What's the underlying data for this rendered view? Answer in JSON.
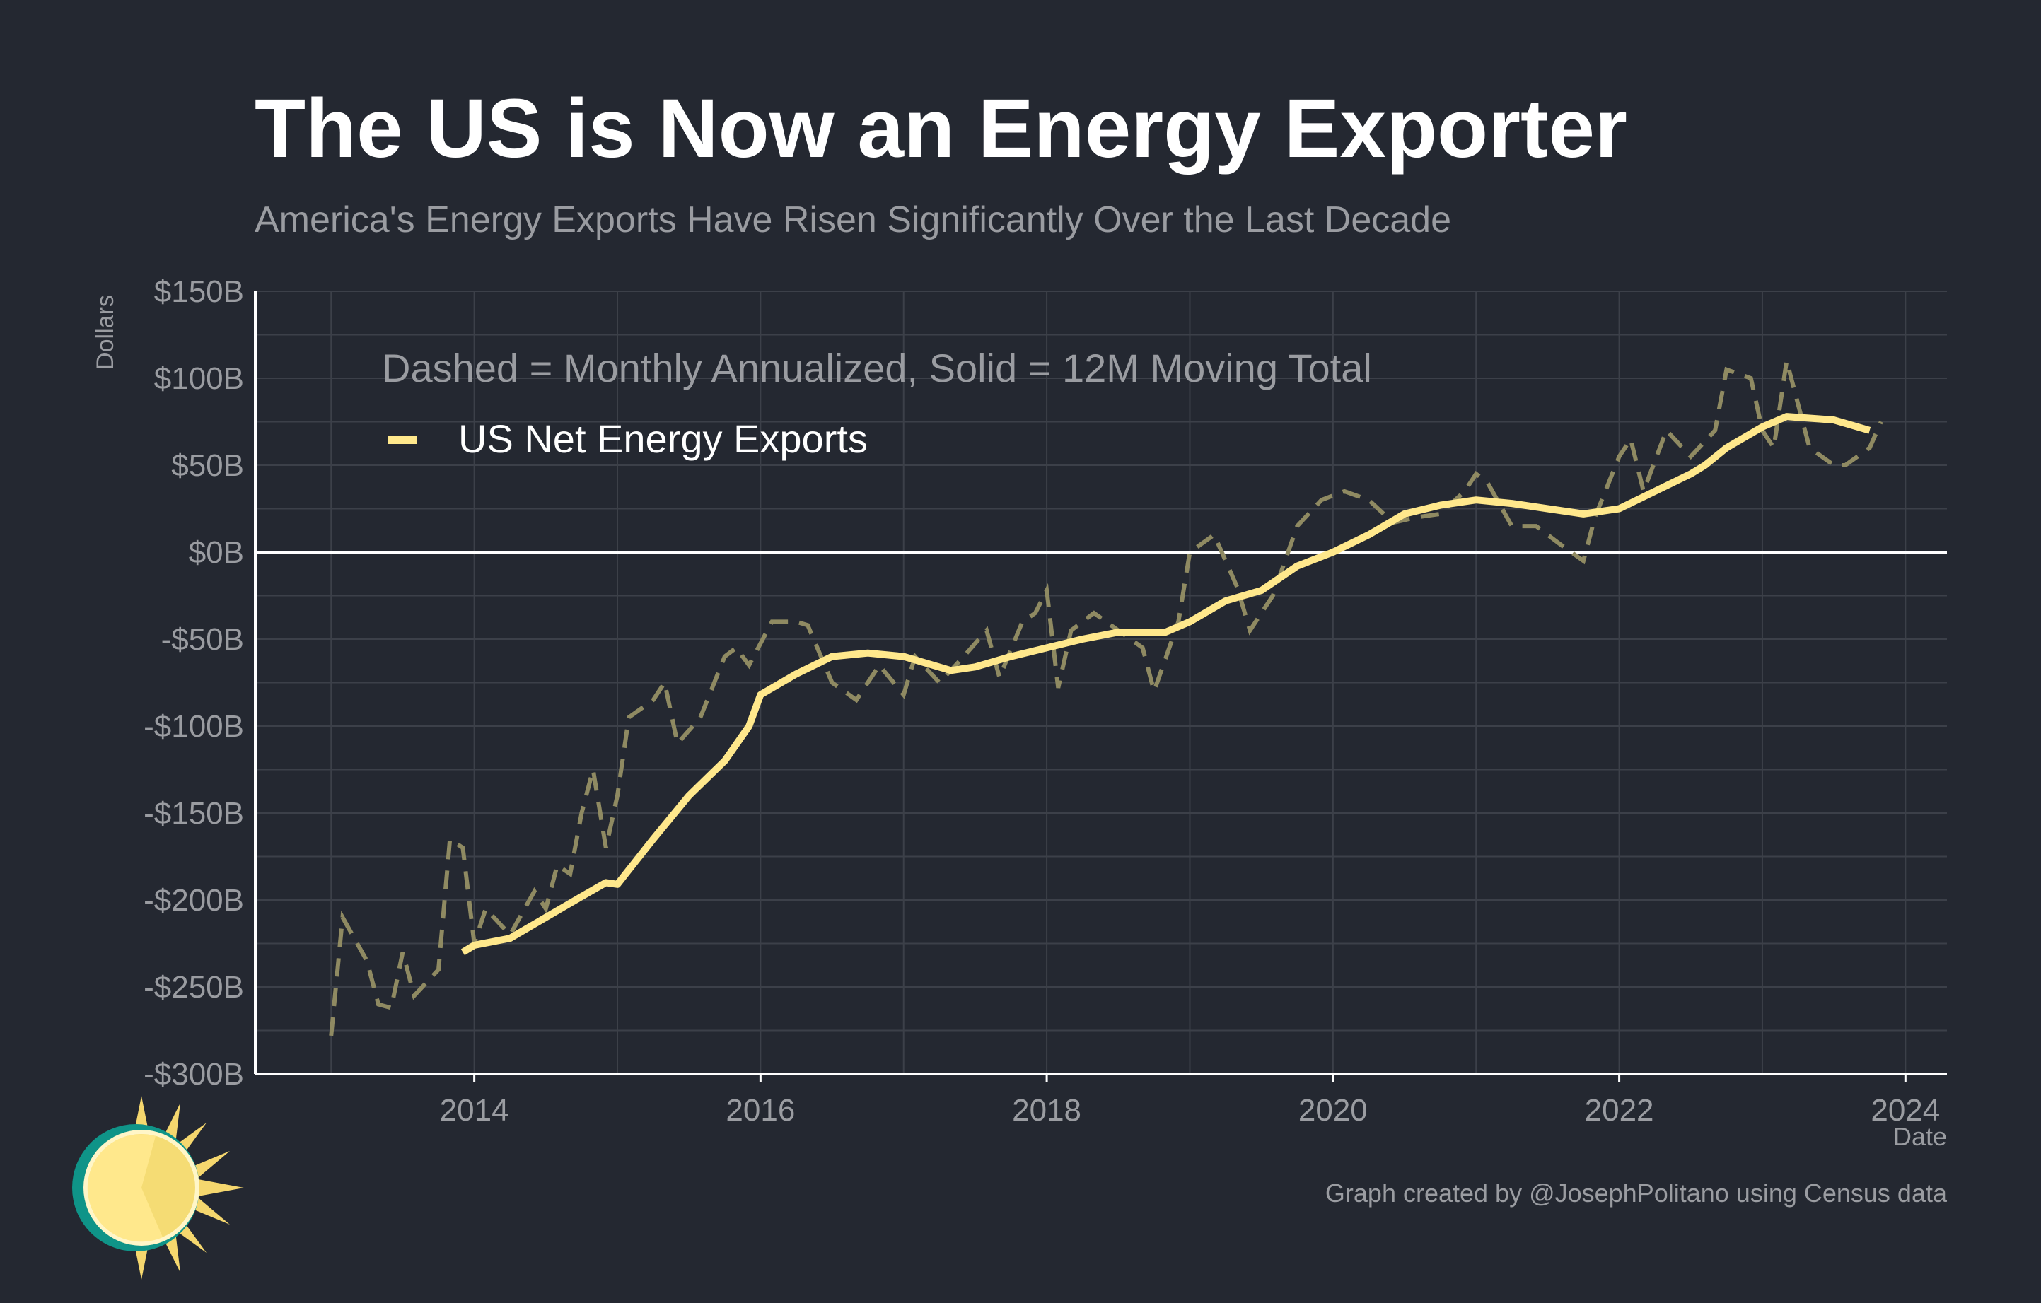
{
  "chart_data": {
    "type": "line",
    "title": "The US is Now an Energy Exporter",
    "subtitle": "America's Energy Exports Have Risen Significantly Over the Last Decade",
    "annotation": "Dashed = Monthly Annualized, Solid = 12M Moving Total",
    "xlabel": "Date",
    "ylabel": "Dollars",
    "credit": "Graph created by @JosephPolitano using Census data",
    "xlim": [
      2012.47,
      2024.29
    ],
    "ylim": [
      -300,
      150
    ],
    "x_ticks": [
      2014,
      2016,
      2018,
      2020,
      2022,
      2024
    ],
    "y_ticks": [
      {
        "value": 150,
        "label": "$150B"
      },
      {
        "value": 100,
        "label": "$100B"
      },
      {
        "value": 50,
        "label": "$50B"
      },
      {
        "value": 0,
        "label": "$0B"
      },
      {
        "value": -50,
        "label": "-$50B"
      },
      {
        "value": -100,
        "label": "-$100B"
      },
      {
        "value": -150,
        "label": "-$150B"
      },
      {
        "value": -200,
        "label": "-$200B"
      },
      {
        "value": -250,
        "label": "-$250B"
      },
      {
        "value": -300,
        "label": "-$300B"
      }
    ],
    "grid": true,
    "legend_placement": "top-left",
    "colors": {
      "background": "#242831",
      "solid": "#ffe88c",
      "dashed": "#8f8a62",
      "zero_line": "#ffffff",
      "grid": "#3c4049",
      "text": "#9a9ca1"
    },
    "series": [
      {
        "name": "US Net Energy Exports",
        "style": "solid",
        "points": [
          [
            2013.92,
            -230
          ],
          [
            2014.0,
            -226
          ],
          [
            2014.25,
            -222
          ],
          [
            2014.5,
            -210
          ],
          [
            2014.75,
            -198
          ],
          [
            2014.92,
            -190
          ],
          [
            2015.0,
            -191
          ],
          [
            2015.25,
            -165
          ],
          [
            2015.5,
            -140
          ],
          [
            2015.75,
            -120
          ],
          [
            2015.92,
            -100
          ],
          [
            2016.0,
            -82
          ],
          [
            2016.25,
            -70
          ],
          [
            2016.5,
            -60
          ],
          [
            2016.75,
            -58
          ],
          [
            2017.0,
            -60
          ],
          [
            2017.33,
            -68
          ],
          [
            2017.5,
            -66
          ],
          [
            2017.75,
            -60
          ],
          [
            2018.0,
            -55
          ],
          [
            2018.25,
            -50
          ],
          [
            2018.5,
            -46
          ],
          [
            2018.83,
            -46
          ],
          [
            2019.0,
            -40
          ],
          [
            2019.25,
            -28
          ],
          [
            2019.5,
            -22
          ],
          [
            2019.75,
            -8
          ],
          [
            2020.0,
            0
          ],
          [
            2020.25,
            10
          ],
          [
            2020.5,
            22
          ],
          [
            2020.75,
            27
          ],
          [
            2021.0,
            30
          ],
          [
            2021.25,
            28
          ],
          [
            2021.5,
            25
          ],
          [
            2021.75,
            22
          ],
          [
            2022.0,
            25
          ],
          [
            2022.25,
            35
          ],
          [
            2022.5,
            45
          ],
          [
            2022.6,
            50
          ],
          [
            2022.75,
            60
          ],
          [
            2023.0,
            72
          ],
          [
            2023.17,
            78
          ],
          [
            2023.5,
            76
          ],
          [
            2023.75,
            70
          ]
        ]
      },
      {
        "style": "dashed",
        "points": [
          [
            2013.0,
            -278
          ],
          [
            2013.08,
            -210
          ],
          [
            2013.25,
            -235
          ],
          [
            2013.33,
            -260
          ],
          [
            2013.42,
            -262
          ],
          [
            2013.5,
            -230
          ],
          [
            2013.58,
            -255
          ],
          [
            2013.75,
            -240
          ],
          [
            2013.83,
            -165
          ],
          [
            2013.92,
            -170
          ],
          [
            2014.0,
            -225
          ],
          [
            2014.08,
            -205
          ],
          [
            2014.25,
            -220
          ],
          [
            2014.42,
            -195
          ],
          [
            2014.5,
            -205
          ],
          [
            2014.58,
            -180
          ],
          [
            2014.67,
            -185
          ],
          [
            2014.75,
            -150
          ],
          [
            2014.83,
            -125
          ],
          [
            2014.92,
            -170
          ],
          [
            2015.0,
            -140
          ],
          [
            2015.08,
            -95
          ],
          [
            2015.25,
            -85
          ],
          [
            2015.33,
            -75
          ],
          [
            2015.42,
            -110
          ],
          [
            2015.58,
            -95
          ],
          [
            2015.75,
            -60
          ],
          [
            2015.83,
            -55
          ],
          [
            2015.92,
            -65
          ],
          [
            2016.08,
            -40
          ],
          [
            2016.25,
            -40
          ],
          [
            2016.33,
            -42
          ],
          [
            2016.5,
            -75
          ],
          [
            2016.67,
            -85
          ],
          [
            2016.83,
            -65
          ],
          [
            2017.0,
            -82
          ],
          [
            2017.08,
            -60
          ],
          [
            2017.25,
            -75
          ],
          [
            2017.42,
            -60
          ],
          [
            2017.58,
            -45
          ],
          [
            2017.67,
            -72
          ],
          [
            2017.83,
            -40
          ],
          [
            2017.92,
            -35
          ],
          [
            2018.0,
            -22
          ],
          [
            2018.08,
            -78
          ],
          [
            2018.17,
            -45
          ],
          [
            2018.33,
            -35
          ],
          [
            2018.5,
            -45
          ],
          [
            2018.67,
            -55
          ],
          [
            2018.75,
            -80
          ],
          [
            2018.92,
            -40
          ],
          [
            2019.0,
            0
          ],
          [
            2019.17,
            10
          ],
          [
            2019.33,
            -20
          ],
          [
            2019.42,
            -45
          ],
          [
            2019.58,
            -25
          ],
          [
            2019.75,
            15
          ],
          [
            2019.92,
            30
          ],
          [
            2020.08,
            35
          ],
          [
            2020.25,
            30
          ],
          [
            2020.42,
            17
          ],
          [
            2020.58,
            20
          ],
          [
            2020.75,
            22
          ],
          [
            2020.92,
            35
          ],
          [
            2021.0,
            45
          ],
          [
            2021.08,
            40
          ],
          [
            2021.25,
            15
          ],
          [
            2021.42,
            15
          ],
          [
            2021.58,
            5
          ],
          [
            2021.75,
            -5
          ],
          [
            2021.83,
            20
          ],
          [
            2022.0,
            55
          ],
          [
            2022.08,
            65
          ],
          [
            2022.17,
            35
          ],
          [
            2022.33,
            70
          ],
          [
            2022.5,
            55
          ],
          [
            2022.67,
            70
          ],
          [
            2022.75,
            105
          ],
          [
            2022.92,
            100
          ],
          [
            2023.0,
            70
          ],
          [
            2023.08,
            60
          ],
          [
            2023.17,
            110
          ],
          [
            2023.33,
            60
          ],
          [
            2023.5,
            50
          ],
          [
            2023.58,
            50
          ],
          [
            2023.75,
            60
          ],
          [
            2023.83,
            75
          ]
        ]
      }
    ]
  },
  "logo": {
    "name": "sun-logo"
  }
}
